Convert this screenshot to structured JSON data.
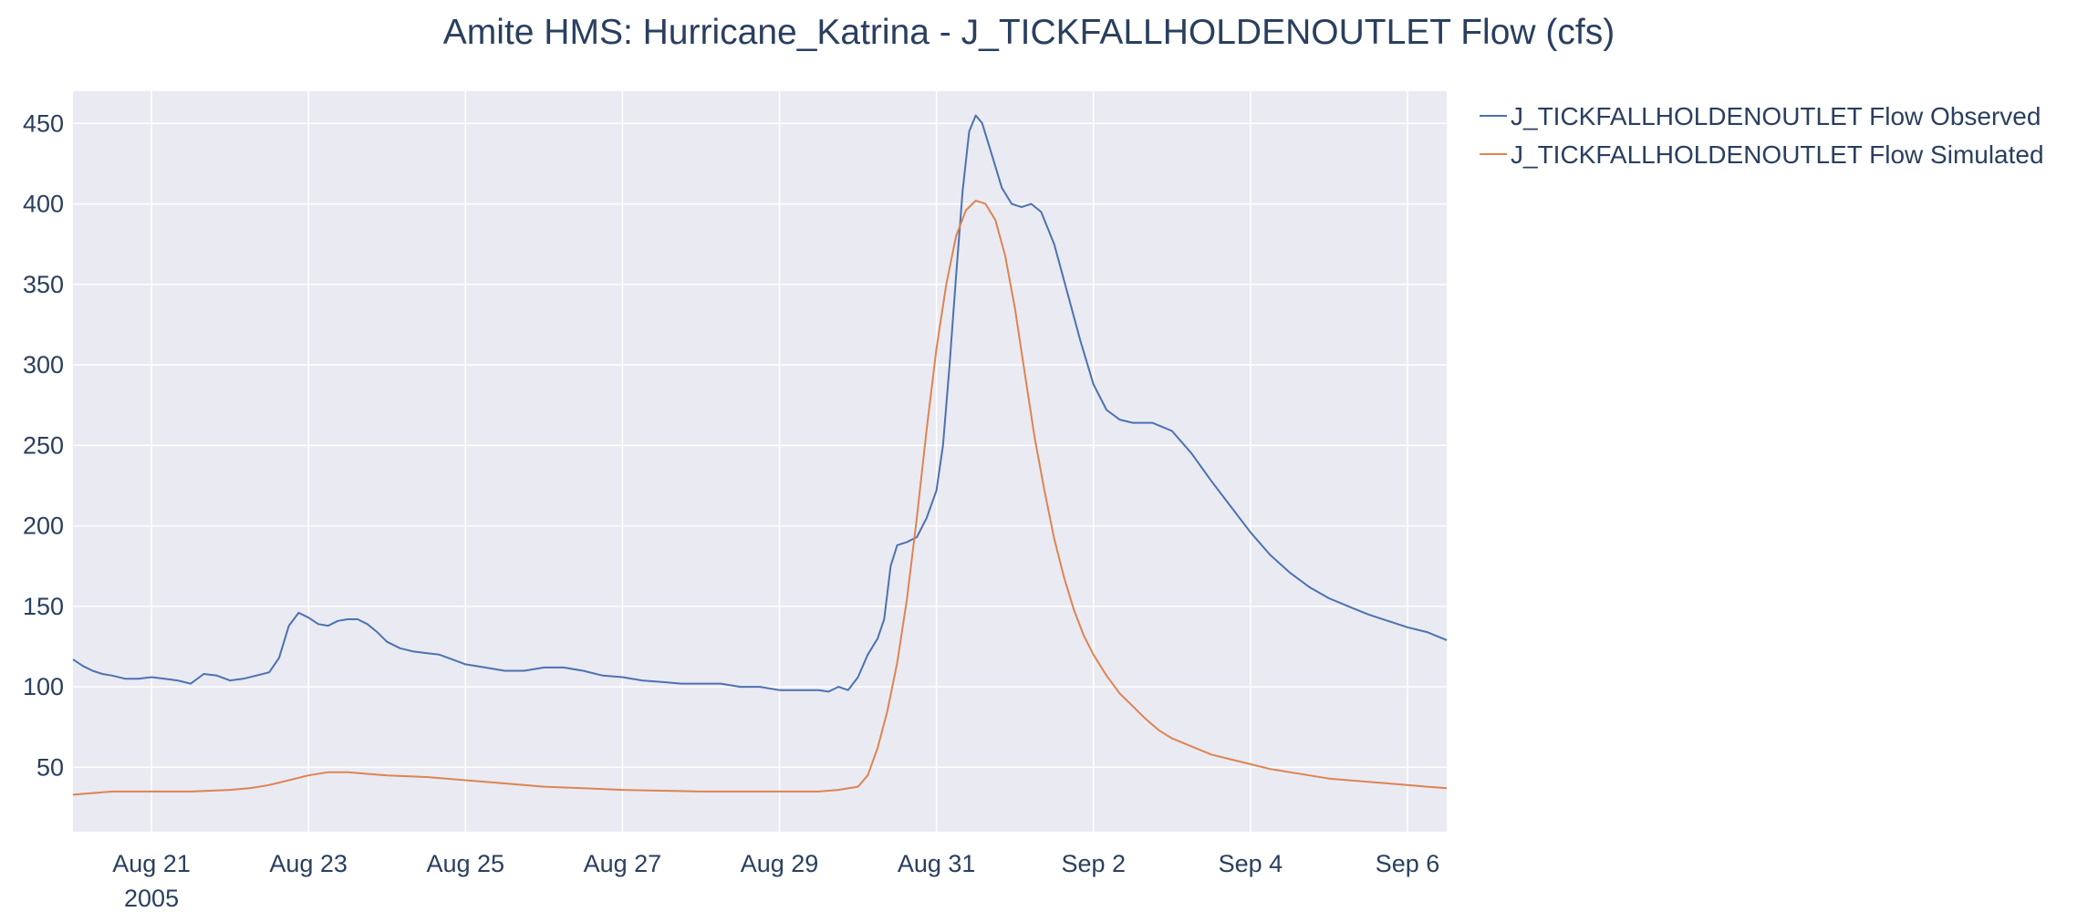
{
  "chart_data": {
    "type": "line",
    "title": "Amite HMS: Hurricane_Katrina - J_TICKFALLHOLDENOUTLET Flow (cfs)",
    "xlabel": "",
    "ylabel": "",
    "x_axis": {
      "type": "date",
      "range": [
        "2005-08-20T00:00",
        "2005-09-06T12:00"
      ],
      "ticks": [
        {
          "value": "2005-08-21",
          "label": "Aug 21",
          "sublabel": "2005"
        },
        {
          "value": "2005-08-23",
          "label": "Aug 23"
        },
        {
          "value": "2005-08-25",
          "label": "Aug 25"
        },
        {
          "value": "2005-08-27",
          "label": "Aug 27"
        },
        {
          "value": "2005-08-29",
          "label": "Aug 29"
        },
        {
          "value": "2005-08-31",
          "label": "Aug 31"
        },
        {
          "value": "2005-09-02",
          "label": "Sep 2"
        },
        {
          "value": "2005-09-04",
          "label": "Sep 4"
        },
        {
          "value": "2005-09-06",
          "label": "Sep 6"
        }
      ]
    },
    "y_axis": {
      "range": [
        10,
        470
      ],
      "ticks": [
        50,
        100,
        150,
        200,
        250,
        300,
        350,
        400,
        450
      ]
    },
    "grid": true,
    "legend_position": "right",
    "series": [
      {
        "name": "J_TICKFALLHOLDENOUTLET Flow Observed",
        "color": "#4c72b0",
        "points": [
          [
            "2005-08-20T00:00",
            117
          ],
          [
            "2005-08-20T03:00",
            113
          ],
          [
            "2005-08-20T06:00",
            110
          ],
          [
            "2005-08-20T09:00",
            108
          ],
          [
            "2005-08-20T12:00",
            107
          ],
          [
            "2005-08-20T16:00",
            105
          ],
          [
            "2005-08-20T20:00",
            105
          ],
          [
            "2005-08-21T00:00",
            106
          ],
          [
            "2005-08-21T04:00",
            105
          ],
          [
            "2005-08-21T08:00",
            104
          ],
          [
            "2005-08-21T12:00",
            102
          ],
          [
            "2005-08-21T16:00",
            108
          ],
          [
            "2005-08-21T20:00",
            107
          ],
          [
            "2005-08-22T00:00",
            104
          ],
          [
            "2005-08-22T04:00",
            105
          ],
          [
            "2005-08-22T08:00",
            107
          ],
          [
            "2005-08-22T12:00",
            109
          ],
          [
            "2005-08-22T15:00",
            118
          ],
          [
            "2005-08-22T18:00",
            138
          ],
          [
            "2005-08-22T21:00",
            146
          ],
          [
            "2005-08-23T00:00",
            143
          ],
          [
            "2005-08-23T03:00",
            139
          ],
          [
            "2005-08-23T06:00",
            138
          ],
          [
            "2005-08-23T09:00",
            141
          ],
          [
            "2005-08-23T12:00",
            142
          ],
          [
            "2005-08-23T15:00",
            142
          ],
          [
            "2005-08-23T18:00",
            139
          ],
          [
            "2005-08-23T21:00",
            134
          ],
          [
            "2005-08-24T00:00",
            128
          ],
          [
            "2005-08-24T04:00",
            124
          ],
          [
            "2005-08-24T08:00",
            122
          ],
          [
            "2005-08-24T12:00",
            121
          ],
          [
            "2005-08-24T16:00",
            120
          ],
          [
            "2005-08-24T20:00",
            117
          ],
          [
            "2005-08-25T00:00",
            114
          ],
          [
            "2005-08-25T06:00",
            112
          ],
          [
            "2005-08-25T12:00",
            110
          ],
          [
            "2005-08-25T18:00",
            110
          ],
          [
            "2005-08-26T00:00",
            112
          ],
          [
            "2005-08-26T06:00",
            112
          ],
          [
            "2005-08-26T12:00",
            110
          ],
          [
            "2005-08-26T18:00",
            107
          ],
          [
            "2005-08-27T00:00",
            106
          ],
          [
            "2005-08-27T06:00",
            104
          ],
          [
            "2005-08-27T12:00",
            103
          ],
          [
            "2005-08-27T18:00",
            102
          ],
          [
            "2005-08-28T00:00",
            102
          ],
          [
            "2005-08-28T06:00",
            102
          ],
          [
            "2005-08-28T12:00",
            100
          ],
          [
            "2005-08-28T18:00",
            100
          ],
          [
            "2005-08-29T00:00",
            98
          ],
          [
            "2005-08-29T06:00",
            98
          ],
          [
            "2005-08-29T12:00",
            98
          ],
          [
            "2005-08-29T15:00",
            97
          ],
          [
            "2005-08-29T18:00",
            100
          ],
          [
            "2005-08-29T21:00",
            98
          ],
          [
            "2005-08-30T00:00",
            106
          ],
          [
            "2005-08-30T03:00",
            120
          ],
          [
            "2005-08-30T06:00",
            130
          ],
          [
            "2005-08-30T08:00",
            142
          ],
          [
            "2005-08-30T10:00",
            175
          ],
          [
            "2005-08-30T12:00",
            188
          ],
          [
            "2005-08-30T15:00",
            190
          ],
          [
            "2005-08-30T18:00",
            193
          ],
          [
            "2005-08-30T21:00",
            205
          ],
          [
            "2005-08-31T00:00",
            222
          ],
          [
            "2005-08-31T02:00",
            250
          ],
          [
            "2005-08-31T04:00",
            300
          ],
          [
            "2005-08-31T06:00",
            355
          ],
          [
            "2005-08-31T08:00",
            408
          ],
          [
            "2005-08-31T10:00",
            445
          ],
          [
            "2005-08-31T12:00",
            455
          ],
          [
            "2005-08-31T14:00",
            450
          ],
          [
            "2005-08-31T17:00",
            430
          ],
          [
            "2005-08-31T20:00",
            410
          ],
          [
            "2005-08-31T23:00",
            400
          ],
          [
            "2005-09-01T02:00",
            398
          ],
          [
            "2005-09-01T05:00",
            400
          ],
          [
            "2005-09-01T08:00",
            395
          ],
          [
            "2005-09-01T12:00",
            375
          ],
          [
            "2005-09-01T16:00",
            345
          ],
          [
            "2005-09-01T20:00",
            315
          ],
          [
            "2005-09-02T00:00",
            288
          ],
          [
            "2005-09-02T04:00",
            272
          ],
          [
            "2005-09-02T08:00",
            266
          ],
          [
            "2005-09-02T12:00",
            264
          ],
          [
            "2005-09-02T18:00",
            264
          ],
          [
            "2005-09-03T00:00",
            259
          ],
          [
            "2005-09-03T06:00",
            245
          ],
          [
            "2005-09-03T12:00",
            228
          ],
          [
            "2005-09-03T18:00",
            212
          ],
          [
            "2005-09-04T00:00",
            196
          ],
          [
            "2005-09-04T06:00",
            182
          ],
          [
            "2005-09-04T12:00",
            171
          ],
          [
            "2005-09-04T18:00",
            162
          ],
          [
            "2005-09-05T00:00",
            155
          ],
          [
            "2005-09-05T06:00",
            150
          ],
          [
            "2005-09-05T12:00",
            145
          ],
          [
            "2005-09-05T18:00",
            141
          ],
          [
            "2005-09-06T00:00",
            137
          ],
          [
            "2005-09-06T06:00",
            134
          ],
          [
            "2005-09-06T12:00",
            129
          ]
        ]
      },
      {
        "name": "J_TICKFALLHOLDENOUTLET Flow Simulated",
        "color": "#dd8452",
        "points": [
          [
            "2005-08-20T00:00",
            33
          ],
          [
            "2005-08-20T06:00",
            34
          ],
          [
            "2005-08-20T12:00",
            35
          ],
          [
            "2005-08-21T00:00",
            35
          ],
          [
            "2005-08-21T12:00",
            35
          ],
          [
            "2005-08-22T00:00",
            36
          ],
          [
            "2005-08-22T06:00",
            37
          ],
          [
            "2005-08-22T12:00",
            39
          ],
          [
            "2005-08-22T18:00",
            42
          ],
          [
            "2005-08-23T00:00",
            45
          ],
          [
            "2005-08-23T06:00",
            47
          ],
          [
            "2005-08-23T12:00",
            47
          ],
          [
            "2005-08-23T18:00",
            46
          ],
          [
            "2005-08-24T00:00",
            45
          ],
          [
            "2005-08-24T12:00",
            44
          ],
          [
            "2005-08-25T00:00",
            42
          ],
          [
            "2005-08-25T12:00",
            40
          ],
          [
            "2005-08-26T00:00",
            38
          ],
          [
            "2005-08-26T12:00",
            37
          ],
          [
            "2005-08-27T00:00",
            36
          ],
          [
            "2005-08-28T00:00",
            35
          ],
          [
            "2005-08-29T00:00",
            35
          ],
          [
            "2005-08-29T12:00",
            35
          ],
          [
            "2005-08-29T18:00",
            36
          ],
          [
            "2005-08-30T00:00",
            38
          ],
          [
            "2005-08-30T03:00",
            45
          ],
          [
            "2005-08-30T06:00",
            62
          ],
          [
            "2005-08-30T09:00",
            85
          ],
          [
            "2005-08-30T12:00",
            115
          ],
          [
            "2005-08-30T15:00",
            155
          ],
          [
            "2005-08-30T18:00",
            205
          ],
          [
            "2005-08-30T21:00",
            260
          ],
          [
            "2005-08-31T00:00",
            310
          ],
          [
            "2005-08-31T03:00",
            350
          ],
          [
            "2005-08-31T06:00",
            380
          ],
          [
            "2005-08-31T09:00",
            396
          ],
          [
            "2005-08-31T12:00",
            402
          ],
          [
            "2005-08-31T15:00",
            400
          ],
          [
            "2005-08-31T18:00",
            390
          ],
          [
            "2005-08-31T21:00",
            368
          ],
          [
            "2005-09-01T00:00",
            335
          ],
          [
            "2005-09-01T03:00",
            295
          ],
          [
            "2005-09-01T06:00",
            255
          ],
          [
            "2005-09-01T09:00",
            222
          ],
          [
            "2005-09-01T12:00",
            192
          ],
          [
            "2005-09-01T15:00",
            168
          ],
          [
            "2005-09-01T18:00",
            148
          ],
          [
            "2005-09-01T21:00",
            132
          ],
          [
            "2005-09-02T00:00",
            120
          ],
          [
            "2005-09-02T04:00",
            107
          ],
          [
            "2005-09-02T08:00",
            96
          ],
          [
            "2005-09-02T12:00",
            88
          ],
          [
            "2005-09-02T16:00",
            80
          ],
          [
            "2005-09-02T20:00",
            73
          ],
          [
            "2005-09-03T00:00",
            68
          ],
          [
            "2005-09-03T06:00",
            63
          ],
          [
            "2005-09-03T12:00",
            58
          ],
          [
            "2005-09-03T18:00",
            55
          ],
          [
            "2005-09-04T00:00",
            52
          ],
          [
            "2005-09-04T06:00",
            49
          ],
          [
            "2005-09-04T12:00",
            47
          ],
          [
            "2005-09-04T18:00",
            45
          ],
          [
            "2005-09-05T00:00",
            43
          ],
          [
            "2005-09-05T06:00",
            42
          ],
          [
            "2005-09-05T12:00",
            41
          ],
          [
            "2005-09-05T18:00",
            40
          ],
          [
            "2005-09-06T00:00",
            39
          ],
          [
            "2005-09-06T06:00",
            38
          ],
          [
            "2005-09-06T12:00",
            37
          ]
        ]
      }
    ]
  }
}
